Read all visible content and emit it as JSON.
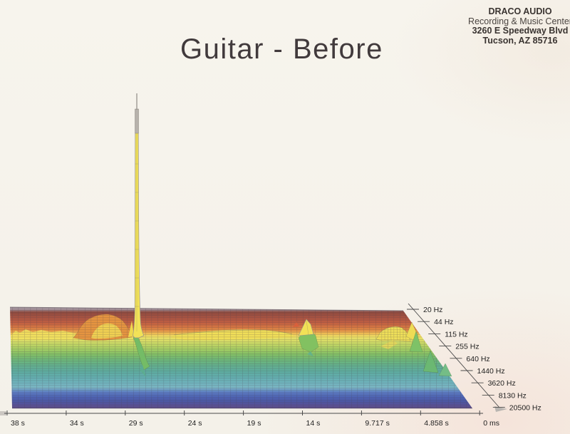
{
  "page": {
    "title": "Guitar - Before"
  },
  "stamp": {
    "lines": [
      "DRACO AUDIO",
      "Recording & Music Center",
      "3260 E Speedway Blvd",
      "Tucson, AZ  85716"
    ]
  },
  "chart_data": {
    "type": "surface",
    "subtype": "3D waterfall spectrogram (time x frequency x amplitude)",
    "title": "Guitar - Before",
    "time_axis": {
      "ticks": [
        "38 s",
        "34 s",
        "29 s",
        "24 s",
        "19 s",
        "14 s",
        "9.717 s",
        "4.858 s",
        "0 ms"
      ],
      "direction": "oldest (38 s) at left, newest (0 ms) at right"
    },
    "frequency_axis": {
      "ticks": [
        "20 Hz",
        "44 Hz",
        "115 Hz",
        "255 Hz",
        "640 Hz",
        "1440 Hz",
        "3620 Hz",
        "8130 Hz",
        "20500 Hz"
      ],
      "scale": "log",
      "direction": "diagonal, 20 Hz at back-top receding to 20500 Hz at front-bottom-right"
    },
    "legend_position": "none",
    "grid": "dense mesh over entire surface",
    "band_colors": [
      {
        "o": 0.0,
        "c": "#b7aab0"
      },
      {
        "o": 0.03,
        "c": "#a08d96"
      },
      {
        "o": 0.055,
        "c": "#8f4a3e"
      },
      {
        "o": 0.11,
        "c": "#aa5442"
      },
      {
        "o": 0.155,
        "c": "#c05e42"
      },
      {
        "o": 0.195,
        "c": "#d37342"
      },
      {
        "o": 0.23,
        "c": "#e28e46"
      },
      {
        "o": 0.255,
        "c": "#ecb452"
      },
      {
        "o": 0.285,
        "c": "#f0dc62"
      },
      {
        "o": 0.32,
        "c": "#dfdf68"
      },
      {
        "o": 0.365,
        "c": "#c2d664"
      },
      {
        "o": 0.415,
        "c": "#a2cc63"
      },
      {
        "o": 0.46,
        "c": "#83c066"
      },
      {
        "o": 0.515,
        "c": "#6db67a"
      },
      {
        "o": 0.57,
        "c": "#63b08e"
      },
      {
        "o": 0.625,
        "c": "#5eada0"
      },
      {
        "o": 0.68,
        "c": "#63afaf"
      },
      {
        "o": 0.735,
        "c": "#70b4be"
      },
      {
        "o": 0.78,
        "c": "#7bb6c4"
      },
      {
        "o": 0.825,
        "c": "#5c7cc3"
      },
      {
        "o": 0.87,
        "c": "#4e64b3"
      },
      {
        "o": 0.91,
        "c": "#4c58a5"
      },
      {
        "o": 0.945,
        "c": "#575197"
      },
      {
        "o": 0.972,
        "c": "#5d4e8b"
      },
      {
        "o": 1.0,
        "c": "#544a7d"
      }
    ],
    "peaks": [
      {
        "time": "~33-30 s",
        "frequency": "~80-160 Hz",
        "amplitude": "broad medium hump",
        "color": "#e59440"
      },
      {
        "time": "~29 s",
        "frequency": "~115 Hz",
        "amplitude": "dominant full-scale narrow spike",
        "color": "#f2e257"
      },
      {
        "time": "24-16 s",
        "frequency": "~115 Hz",
        "amplitude": "gentle broad swell",
        "color": "#f0de58"
      },
      {
        "time": "~14 s",
        "frequency": "~115-255 Hz",
        "amplitude": "small sharp peak",
        "color": "#f2e156"
      },
      {
        "time": "7-4.5 s",
        "frequency": "~115-640 Hz",
        "amplitude": "cluster of small peaks on front edge",
        "color": "#7ec267"
      }
    ]
  }
}
